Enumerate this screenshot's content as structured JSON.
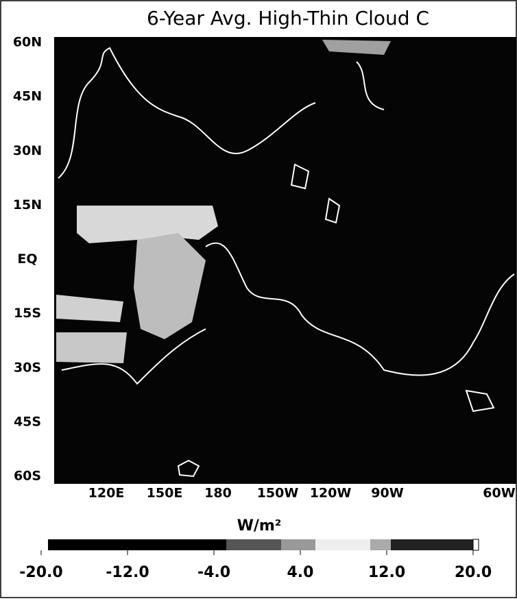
{
  "title": "6-Year Avg. High-Thin Cloud C",
  "latitude_labels": [
    "60N",
    "45N",
    "30N",
    "15N",
    "EQ",
    "15S",
    "30S",
    "45S",
    "60S"
  ],
  "longitude_labels": [
    "120E",
    "150E",
    "180",
    "150W",
    "120W",
    "90W",
    "60W"
  ],
  "colorbar": {
    "label": "W/m²",
    "lim": [
      -20,
      20
    ],
    "ticks": [
      {
        "value": -20,
        "label": "-20.0"
      },
      {
        "value": -12,
        "label": "-12.0"
      },
      {
        "value": -4,
        "label": "-4.0"
      },
      {
        "value": 4,
        "label": "4.0"
      },
      {
        "value": 12,
        "label": "12.0"
      },
      {
        "value": 20,
        "label": "20.0"
      }
    ]
  }
}
